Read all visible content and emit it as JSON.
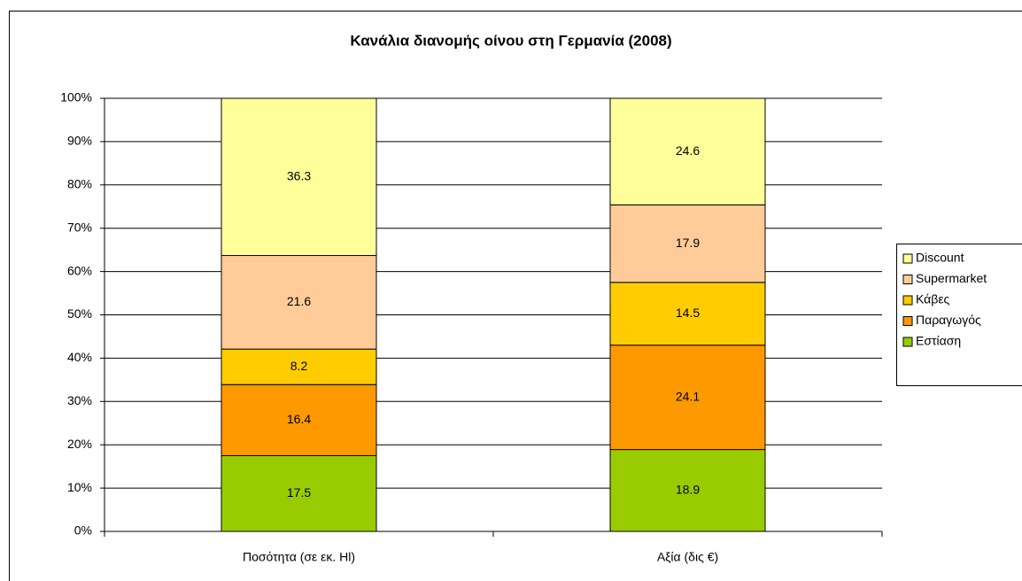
{
  "chart_data": {
    "type": "stacked_bar",
    "title": "Κανάλια διανομής οίνου στη Γερμανία (2008)",
    "categories": [
      "Ποσότητα (σε εκ. Hl)",
      "Αξία (δις €)"
    ],
    "series": [
      {
        "name": "Εστίαση",
        "color": "#99cc00",
        "values": [
          17.5,
          18.9
        ]
      },
      {
        "name": "Παραγωγός",
        "color": "#ff9900",
        "values": [
          16.4,
          24.1
        ]
      },
      {
        "name": "Κάβες",
        "color": "#ffcc00",
        "values": [
          8.2,
          14.5
        ]
      },
      {
        "name": "Supermarket",
        "color": "#ffcc99",
        "values": [
          21.6,
          17.9
        ]
      },
      {
        "name": "Discount",
        "color": "#ffff99",
        "values": [
          36.3,
          24.6
        ]
      }
    ],
    "ylim": [
      0,
      100
    ],
    "yticks": [
      {
        "value": 0,
        "label": "0%"
      },
      {
        "value": 10,
        "label": "10%"
      },
      {
        "value": 20,
        "label": "20%"
      },
      {
        "value": 30,
        "label": "30%"
      },
      {
        "value": 40,
        "label": "40%"
      },
      {
        "value": 50,
        "label": "50%"
      },
      {
        "value": 60,
        "label": "60%"
      },
      {
        "value": 70,
        "label": "70%"
      },
      {
        "value": 80,
        "label": "80%"
      },
      {
        "value": 90,
        "label": "90%"
      },
      {
        "value": 100,
        "label": "100%"
      }
    ],
    "grid": true,
    "legend": "right"
  }
}
